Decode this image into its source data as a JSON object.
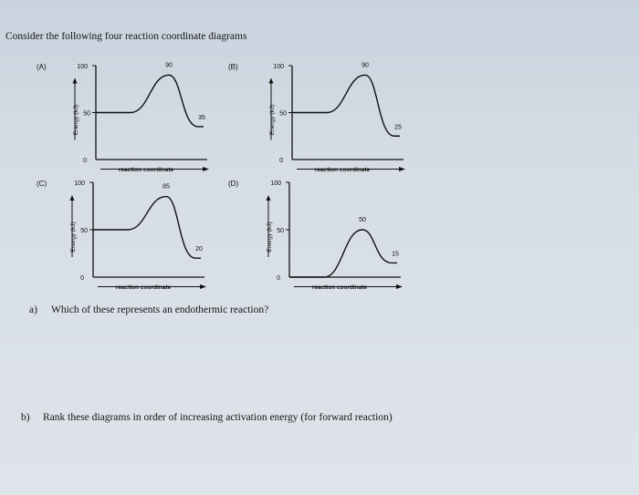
{
  "intro": "Consider the following four reaction coordinate diagrams",
  "diagrams": [
    {
      "label": "(A)",
      "y_top": "100",
      "y_mid": "50",
      "y_zero": "0",
      "reactant": 50,
      "peak": 90,
      "product": 35,
      "peak_label": "90",
      "product_label": "35",
      "ylabel": "Energy (kJ)",
      "xlabel": "reaction coordinate"
    },
    {
      "label": "(B)",
      "y_top": "100",
      "y_mid": "50",
      "y_zero": "0",
      "reactant": 50,
      "peak": 90,
      "product": 25,
      "peak_label": "90",
      "product_label": "25",
      "ylabel": "Energy (kJ)",
      "xlabel": "reaction coordinate"
    },
    {
      "label": "(C)",
      "y_top": "100",
      "y_mid": "50",
      "y_zero": "0",
      "reactant": 50,
      "peak": 85,
      "product": 20,
      "peak_label": "85",
      "product_label": "20",
      "ylabel": "Energy (kJ)",
      "xlabel": "reaction coordinate"
    },
    {
      "label": "(D)",
      "y_top": "100",
      "y_mid": "50",
      "y_zero": "0",
      "reactant": 0,
      "peak": 50,
      "product": 15,
      "peak_label": "50",
      "product_label": "15",
      "ylabel": "Energy (kJ)",
      "xlabel": "reaction coordinate"
    }
  ],
  "questions": {
    "a_letter": "a)",
    "a_text": "Which of these represents an endothermic reaction?",
    "b_letter": "b)",
    "b_text": "Rank these diagrams in order of increasing activation energy (for forward reaction)"
  }
}
